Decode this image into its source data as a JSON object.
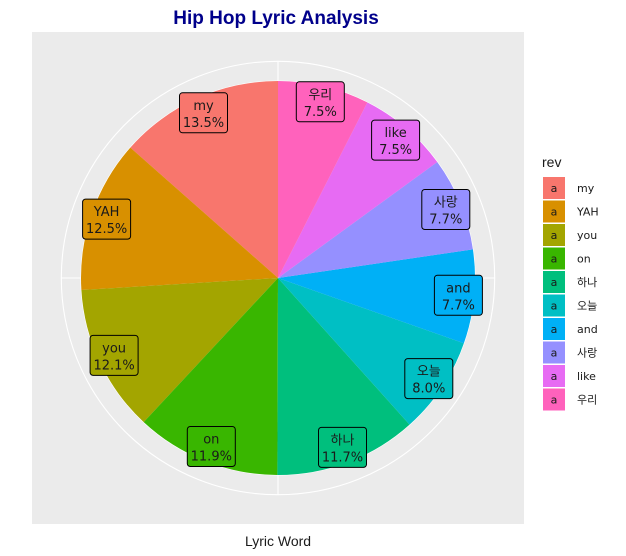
{
  "chart_data": {
    "type": "pie",
    "title": "Hip Hop Lyric Analysis",
    "xlabel": "Lyric Word",
    "legend": {
      "title": "rev",
      "key_glyph": "a",
      "placement": "right"
    },
    "grid": true,
    "slices": [
      {
        "label": "my",
        "percent": 13.5,
        "display": "13.5%",
        "color": "#F8766D"
      },
      {
        "label": "YAH",
        "percent": 12.5,
        "display": "12.5%",
        "color": "#D89000"
      },
      {
        "label": "you",
        "percent": 12.1,
        "display": "12.1%",
        "color": "#A3A500"
      },
      {
        "label": "on",
        "percent": 11.9,
        "display": "11.9%",
        "color": "#39B600"
      },
      {
        "label": "하나",
        "percent": 11.7,
        "display": "11.7%",
        "color": "#00BF7D"
      },
      {
        "label": "오늘",
        "percent": 8.0,
        "display": "8.0%",
        "color": "#00BFC4"
      },
      {
        "label": "and",
        "percent": 7.7,
        "display": "7.7%",
        "color": "#00B0F6"
      },
      {
        "label": "사랑",
        "percent": 7.7,
        "display": "7.7%",
        "color": "#9590FF"
      },
      {
        "label": "like",
        "percent": 7.5,
        "display": "7.5%",
        "color": "#E76BF3"
      },
      {
        "label": "우리",
        "percent": 7.5,
        "display": "7.5%",
        "color": "#FF62BC"
      }
    ]
  },
  "colors": {
    "title": "#00008B",
    "panel": "#EBEBEB",
    "grid": "#FFFFFF"
  }
}
